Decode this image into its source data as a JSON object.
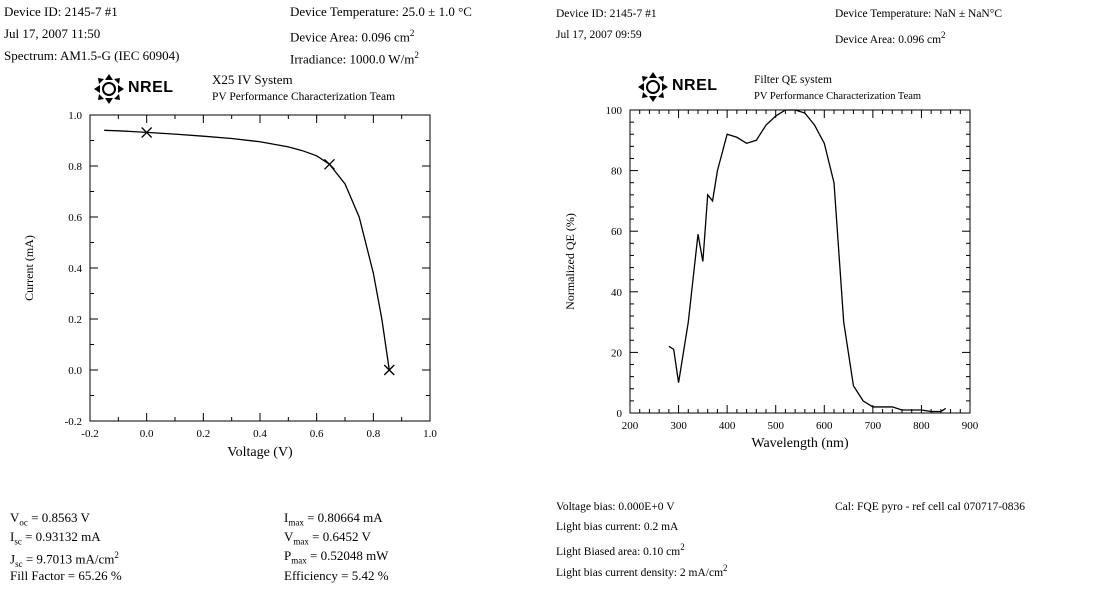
{
  "left_header": {
    "device_id": "Device ID: 2145-7 #1",
    "timestamp": "Jul 17, 2007 11:50",
    "spectrum": "Spectrum: AM1.5-G (IEC 60904)",
    "temperature": "Device Temperature: 25.0 ± 1.0 °C",
    "area_prefix": "Device Area: 0.096 cm",
    "area_sup": "2",
    "irradiance_prefix": "Irradiance: 1000.0 W/m",
    "irradiance_sup": "2"
  },
  "left_logo": {
    "name": "NREL",
    "system": "X25 IV System",
    "team": "PV Performance Characterization Team"
  },
  "right_header": {
    "device_id": "Device ID: 2145-7 #1",
    "timestamp": "Jul 17, 2007 09:59",
    "temperature": "Device Temperature: NaN ± NaN°C",
    "area_prefix": "Device Area: 0.096 cm",
    "area_sup": "2"
  },
  "right_logo": {
    "name": "NREL",
    "system": "Filter QE system",
    "team": "PV Performance Characterization Team"
  },
  "left_results": {
    "voc": {
      "sym": "V",
      "sub": "oc",
      "value": " = 0.8563 V"
    },
    "isc": {
      "sym": "I",
      "sub": "sc",
      "value": " = 0.93132 mA"
    },
    "jsc": {
      "sym": "J",
      "sub": "sc",
      "value": " = 9.7013 mA/cm",
      "sup": "2"
    },
    "ff": "Fill Factor = 65.26 %",
    "imax": {
      "sym": "I",
      "sub": "max",
      "value": " = 0.80664 mA"
    },
    "vmax": {
      "sym": "V",
      "sub": "max",
      "value": " = 0.6452 V"
    },
    "pmax": {
      "sym": "P",
      "sub": "max",
      "value": " = 0.52048 mW"
    },
    "eff": "Efficiency = 5.42 %"
  },
  "right_results": {
    "voltage_bias": "Voltage bias: 0.000E+0 V",
    "light_bias_current": "Light bias current: 0.2 mA",
    "light_biased_area_prefix": "Light Biased area: 0.10 cm",
    "light_biased_area_sup": "2",
    "light_bias_density_prefix": "Light bias current density: 2 mA/cm",
    "light_bias_density_sup": "2",
    "cal": "Cal: FQE pyro - ref cell cal  070717-0836"
  },
  "chart_data": [
    {
      "type": "line",
      "xlabel": "Voltage (V)",
      "ylabel": "Current (mA)",
      "xlim": [
        -0.2,
        1.0
      ],
      "ylim": [
        -0.2,
        1.0
      ],
      "xticks": [
        "-0.2",
        "0.0",
        "0.2",
        "0.4",
        "0.6",
        "0.8",
        "1.0"
      ],
      "yticks": [
        "-0.2",
        "0.0",
        "0.2",
        "0.4",
        "0.6",
        "0.8",
        "1.0"
      ],
      "series": [
        {
          "x": [
            -0.15,
            -0.1,
            0.0,
            0.1,
            0.2,
            0.3,
            0.4,
            0.5,
            0.55,
            0.6,
            0.645,
            0.7,
            0.75,
            0.8,
            0.83,
            0.8563
          ],
          "y": [
            0.94,
            0.938,
            0.932,
            0.925,
            0.917,
            0.908,
            0.895,
            0.875,
            0.86,
            0.84,
            0.807,
            0.73,
            0.6,
            0.38,
            0.2,
            0.0
          ]
        }
      ],
      "markers": [
        {
          "x": 0.0,
          "y": 0.93132
        },
        {
          "x": 0.6452,
          "y": 0.80664
        },
        {
          "x": 0.8563,
          "y": 0.0
        }
      ],
      "grid": false
    },
    {
      "type": "line",
      "xlabel": "Wavelength (nm)",
      "ylabel": "Normalized QE (%)",
      "xlim": [
        200,
        900
      ],
      "ylim": [
        0,
        100
      ],
      "xticks": [
        "200",
        "300",
        "400",
        "500",
        "600",
        "700",
        "800",
        "900"
      ],
      "yticks": [
        "0",
        "20",
        "40",
        "60",
        "80",
        "100"
      ],
      "series": [
        {
          "x": [
            280,
            290,
            300,
            320,
            340,
            350,
            360,
            370,
            380,
            400,
            420,
            440,
            460,
            480,
            500,
            520,
            540,
            560,
            580,
            600,
            620,
            640,
            660,
            680,
            700,
            720,
            740,
            760,
            780,
            800,
            820,
            840,
            850
          ],
          "y": [
            22,
            21,
            10,
            30,
            59,
            50,
            72,
            70,
            80,
            92,
            91,
            89,
            90,
            95,
            98,
            100,
            100,
            99,
            95,
            89,
            76,
            30,
            9,
            4,
            2,
            2,
            2,
            1,
            1,
            1,
            0.5,
            0.5,
            1.5
          ]
        }
      ],
      "grid": false
    }
  ]
}
